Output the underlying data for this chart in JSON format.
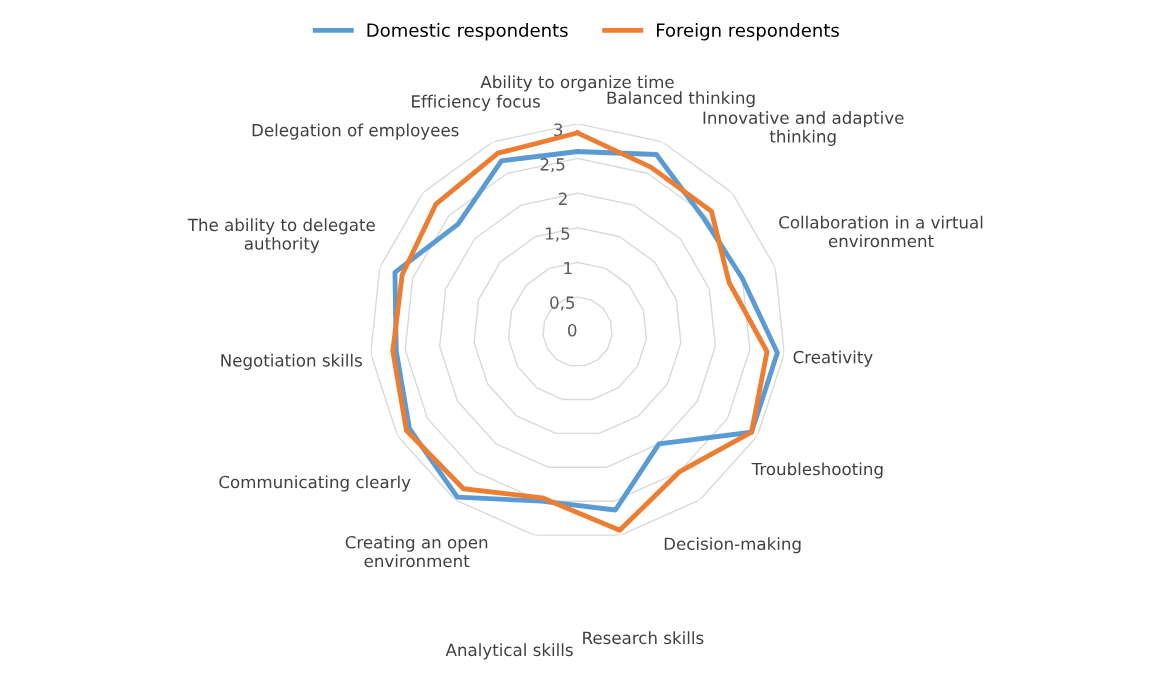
{
  "chart_data": {
    "type": "radar",
    "categories": [
      "Ability to organize time",
      "Balanced thinking",
      "Innovative and adaptive\nthinking",
      "Collaboration in a virtual\nenvironment",
      "Creativity",
      "Troubleshooting",
      "Decision-making",
      "Research skills",
      "Analytical skills",
      "Creating an open\nenvironment",
      "Communicating clearly",
      "Negotiation skills",
      "The ability to delegate\nauthority",
      "Delegation of employees",
      "Efficiency focus"
    ],
    "series": [
      {
        "name": "Domestic respondents",
        "color": "#5b9bd5",
        "values": [
          2.6,
          2.8,
          2.45,
          2.5,
          2.9,
          2.9,
          2.0,
          2.63,
          2.5,
          2.95,
          2.8,
          2.63,
          2.77,
          2.32,
          2.7
        ]
      },
      {
        "name": "Foreign respondents",
        "color": "#ed7d31",
        "values": [
          2.87,
          2.6,
          2.6,
          2.3,
          2.75,
          2.9,
          2.5,
          2.93,
          2.45,
          2.8,
          2.85,
          2.68,
          2.66,
          2.75,
          2.82
        ]
      }
    ],
    "ylim": [
      0,
      3
    ],
    "yticks": [
      0,
      {
        "value": 0.5,
        "label": "0,5"
      },
      1,
      {
        "value": 1.5,
        "label": "1,5"
      },
      2,
      {
        "value": 2.5,
        "label": "2,5"
      },
      3
    ],
    "grid": true,
    "legend": "top",
    "marker": "none",
    "line_style": "solid"
  }
}
